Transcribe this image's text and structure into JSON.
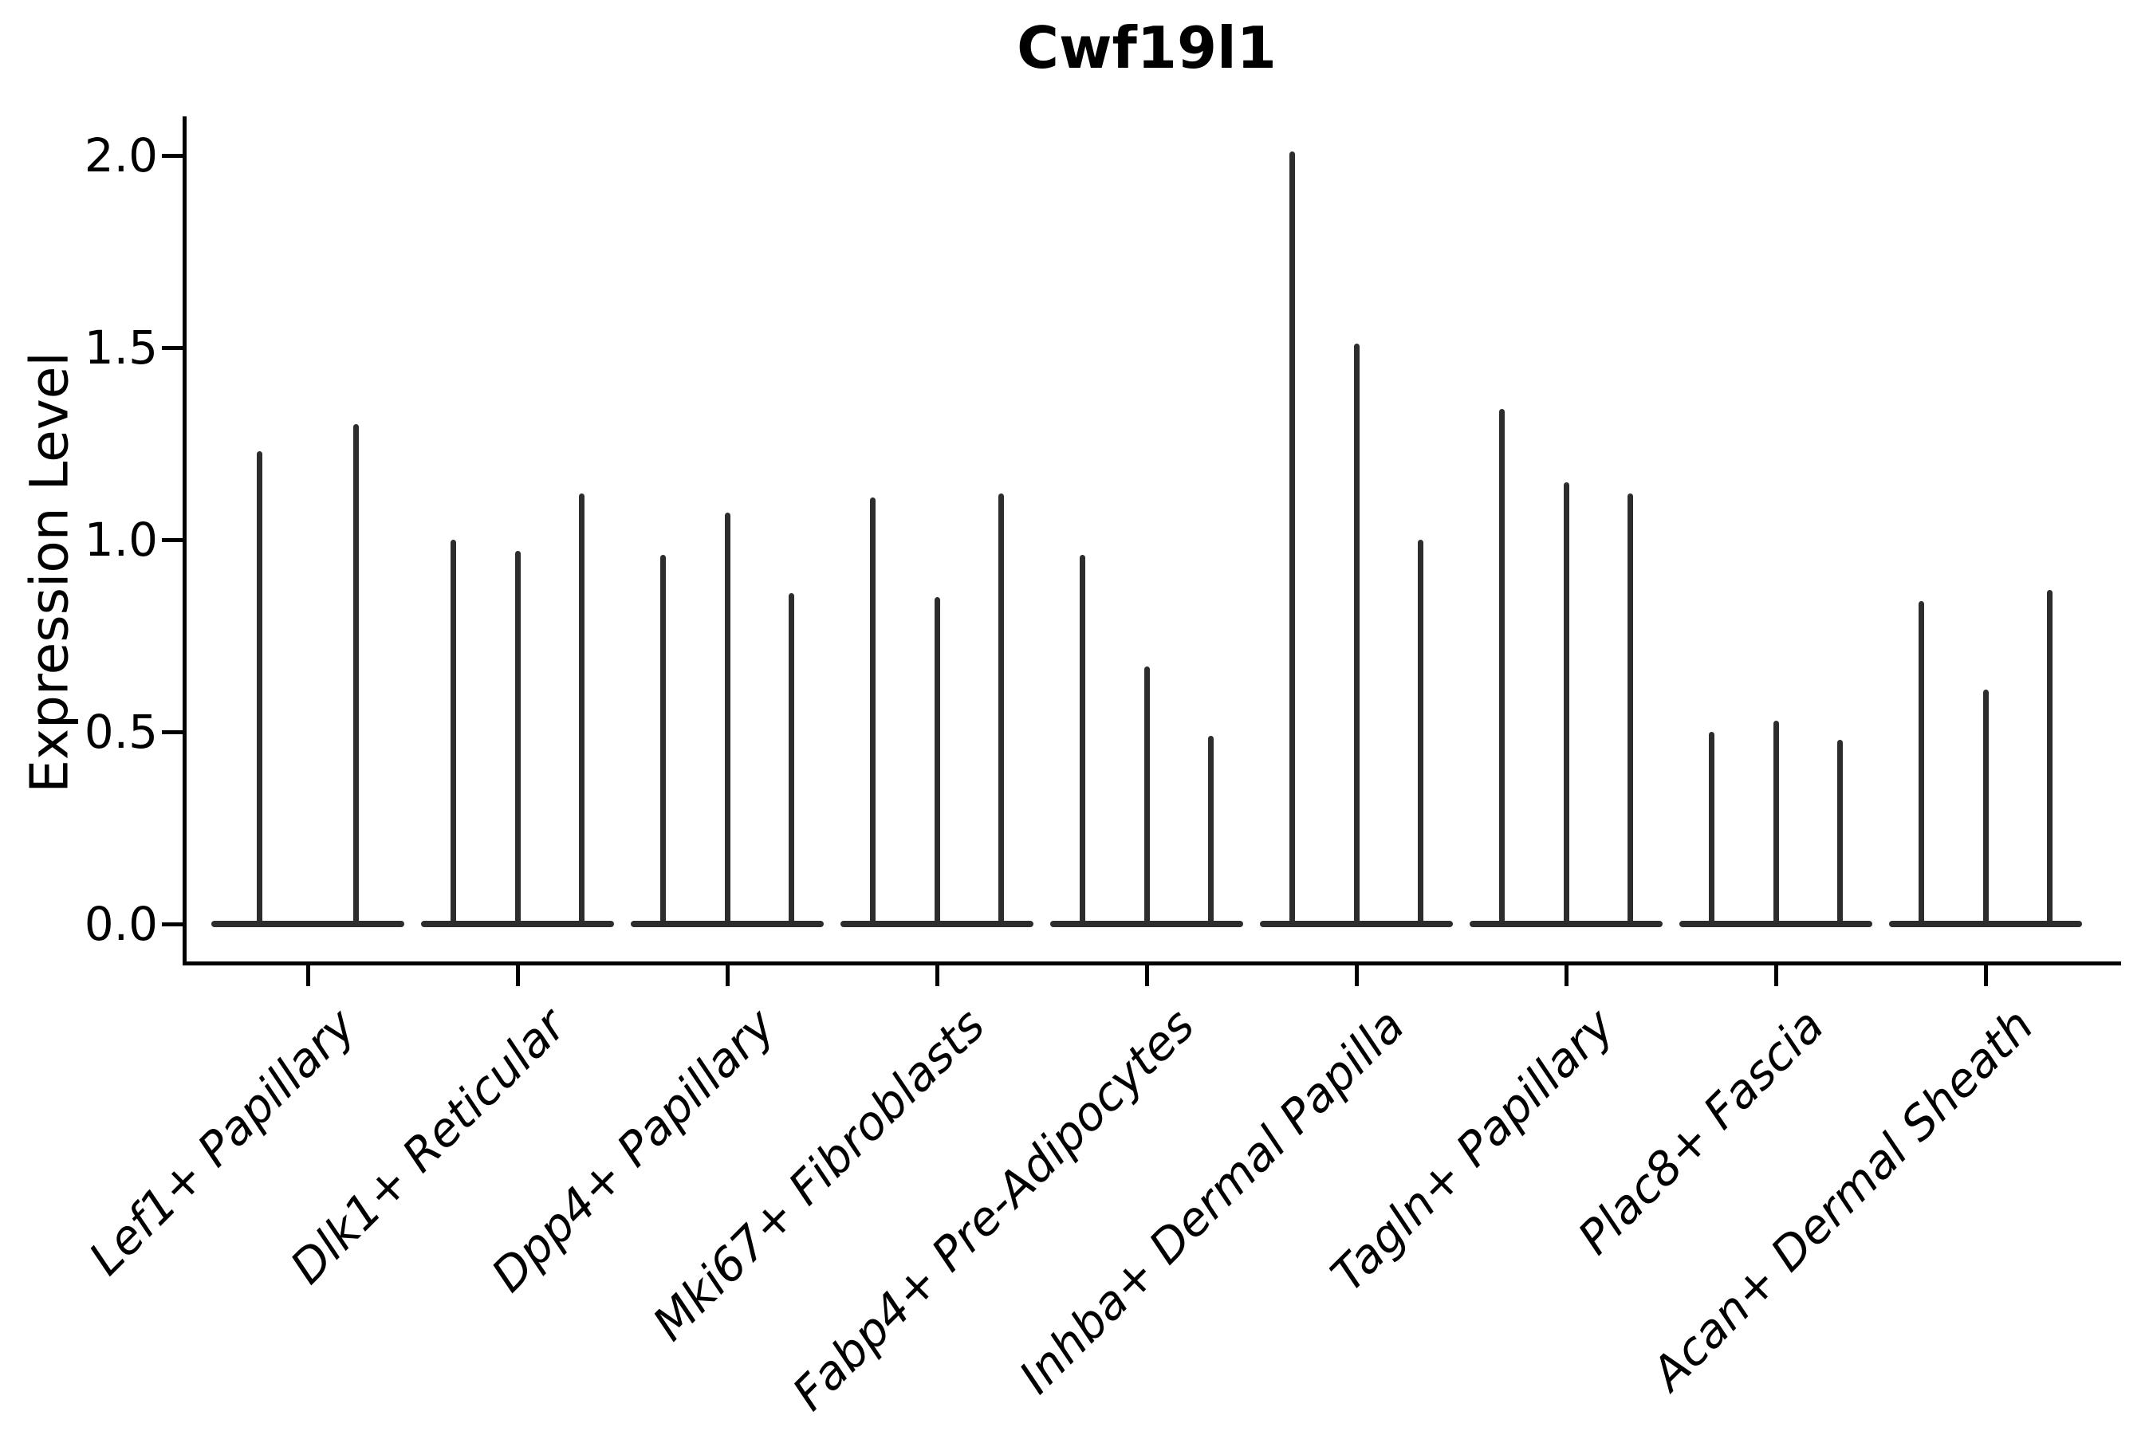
{
  "chart_data": {
    "type": "violin",
    "title": "Cwf19l1",
    "ylabel": "Expression Level",
    "xlabel": "",
    "ylim": [
      0.0,
      2.1
    ],
    "yticks": [
      {
        "value": 0.0,
        "label": "0.0"
      },
      {
        "value": 0.5,
        "label": "0.5"
      },
      {
        "value": 1.0,
        "label": "1.0"
      },
      {
        "value": 1.5,
        "label": "1.5"
      },
      {
        "value": 2.0,
        "label": "2.0"
      }
    ],
    "grid": false,
    "legend_position": "none",
    "description": "Violin plot of single-gene expression; each cell-type category shows very thin spike-like violins (flat base at 0 with narrow peaks up to the max expression value).",
    "categories": [
      {
        "label": "Lef1+ Papillary",
        "violin_peaks": [
          1.23,
          1.3
        ]
      },
      {
        "label": "Dlk1+ Reticular",
        "violin_peaks": [
          1.0,
          0.97,
          1.12
        ]
      },
      {
        "label": "Dpp4+ Papillary",
        "violin_peaks": [
          0.96,
          1.07,
          0.86
        ]
      },
      {
        "label": "Mki67+ Fibroblasts",
        "violin_peaks": [
          1.11,
          0.85,
          1.12
        ]
      },
      {
        "label": "Fabp4+ Pre-Adipocytes",
        "violin_peaks": [
          0.96,
          0.67,
          0.49
        ]
      },
      {
        "label": "Inhba+ Dermal Papilla",
        "violin_peaks": [
          2.01,
          1.51,
          1.0
        ]
      },
      {
        "label": "Tagln+ Papillary",
        "violin_peaks": [
          1.34,
          1.15,
          1.12
        ]
      },
      {
        "label": "Plac8+ Fascia",
        "violin_peaks": [
          0.5,
          0.53,
          0.48
        ]
      },
      {
        "label": "Acan+ Dermal Sheath",
        "violin_peaks": [
          0.84,
          0.61,
          0.87
        ]
      }
    ],
    "colors": {
      "violin": "#2d2d2d",
      "axis": "#000000",
      "text": "#000000",
      "background": "#ffffff"
    }
  }
}
